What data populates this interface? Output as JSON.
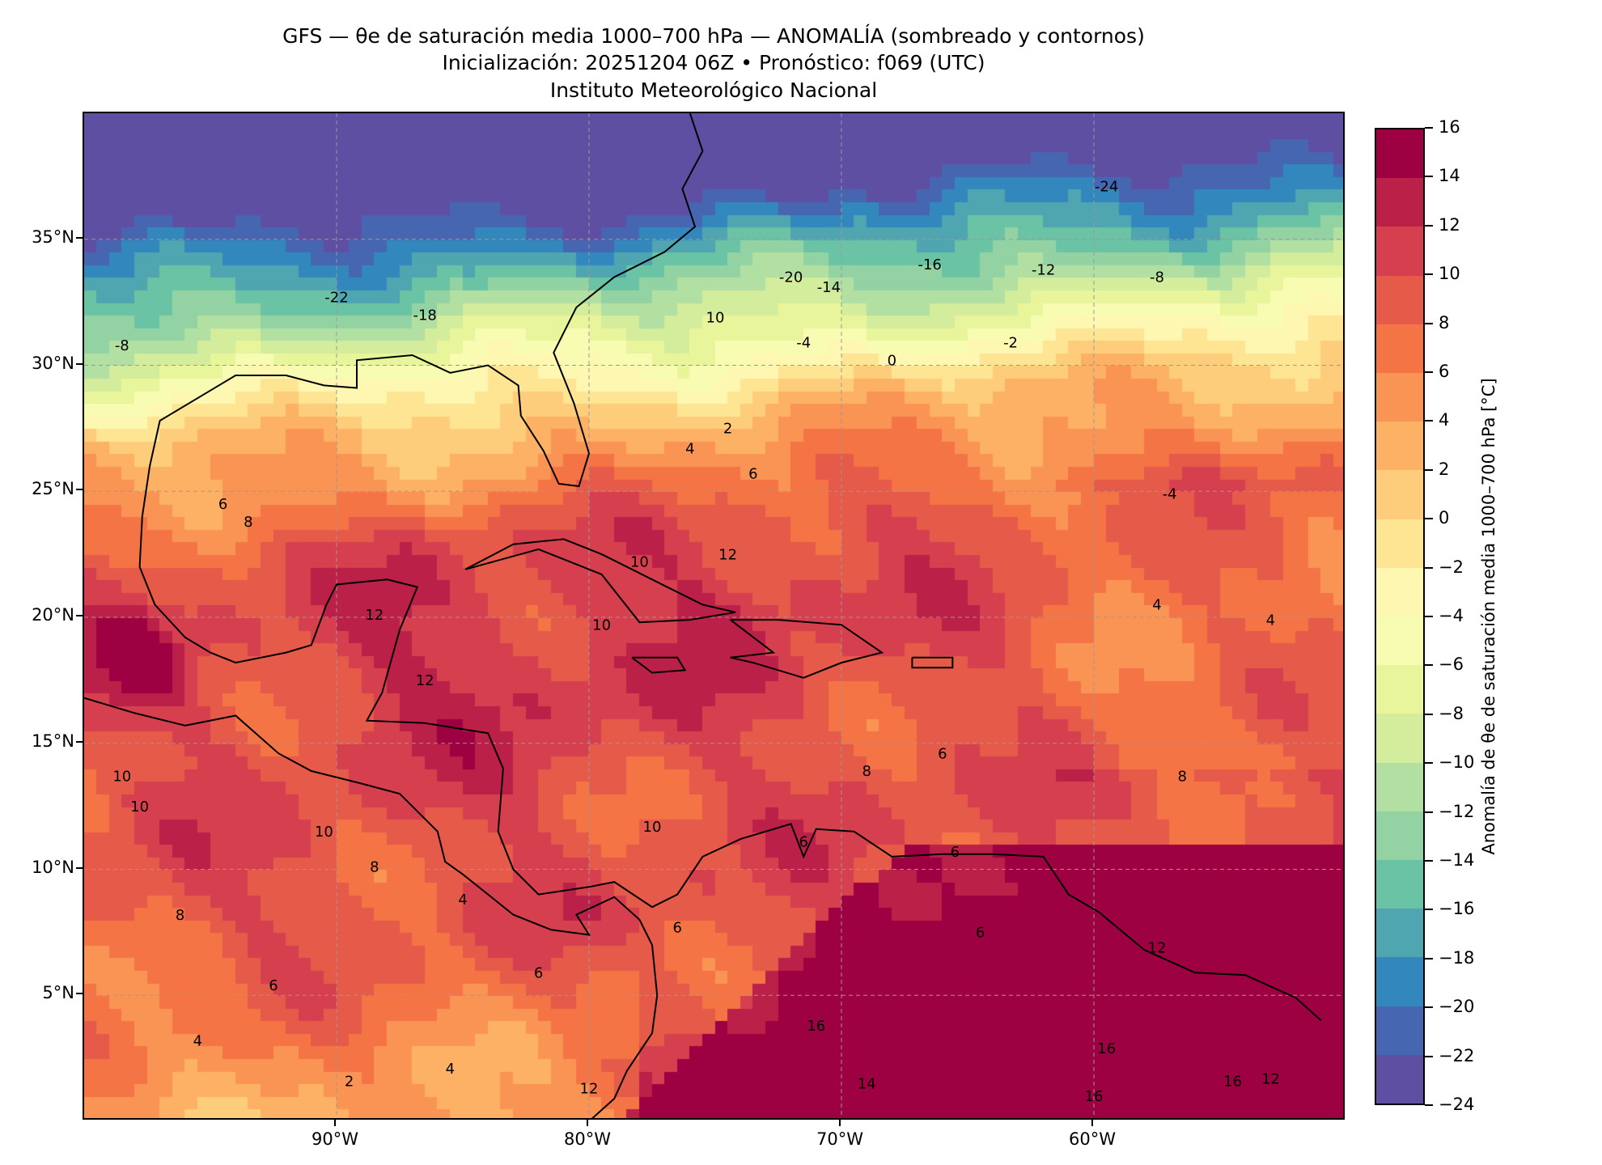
{
  "title": {
    "line1": "GFS — θe de saturación media 1000–700 hPa — ANOMALÍA (sombreado y contornos)",
    "line2": "Inicialización: 20251204 06Z   •   Pronóstico: f069 (UTC)",
    "line3": "Instituto Meteorológico Nacional"
  },
  "map": {
    "lon_range": [
      -100,
      -50
    ],
    "lat_range": [
      0,
      40
    ],
    "lat_ticks": [
      {
        "value": 35,
        "label": "35°N"
      },
      {
        "value": 30,
        "label": "30°N"
      },
      {
        "value": 25,
        "label": "25°N"
      },
      {
        "value": 20,
        "label": "20°N"
      },
      {
        "value": 15,
        "label": "15°N"
      },
      {
        "value": 10,
        "label": "10°N"
      },
      {
        "value": 5,
        "label": "5°N"
      }
    ],
    "lon_ticks": [
      {
        "value": -90,
        "label": "90°W"
      },
      {
        "value": -80,
        "label": "80°W"
      },
      {
        "value": -70,
        "label": "70°W"
      },
      {
        "value": -60,
        "label": "60°W"
      }
    ],
    "contour_labels": [
      {
        "lon": -59.5,
        "lat": 36.9,
        "text": "-24"
      },
      {
        "lon": -90,
        "lat": 32.5,
        "text": "-22"
      },
      {
        "lon": -72,
        "lat": 33.3,
        "text": "-20"
      },
      {
        "lon": -86.5,
        "lat": 31.8,
        "text": "-18"
      },
      {
        "lon": -66.5,
        "lat": 33.8,
        "text": "-16"
      },
      {
        "lon": -70.5,
        "lat": 32.9,
        "text": "-14"
      },
      {
        "lon": -62,
        "lat": 33.6,
        "text": "-12"
      },
      {
        "lon": -75,
        "lat": 31.7,
        "text": "10"
      },
      {
        "lon": -98.5,
        "lat": 30.6,
        "text": "-8"
      },
      {
        "lon": -57.5,
        "lat": 33.3,
        "text": "-8"
      },
      {
        "lon": -71.5,
        "lat": 30.7,
        "text": "-4"
      },
      {
        "lon": -63.3,
        "lat": 30.7,
        "text": "-2"
      },
      {
        "lon": -68,
        "lat": 30
      },
      {
        "lon": -68,
        "lat": 30,
        "text": "0"
      },
      {
        "lon": -74.5,
        "lat": 27.3,
        "text": "2"
      },
      {
        "lon": -76,
        "lat": 26.5,
        "text": "4"
      },
      {
        "lon": -73.5,
        "lat": 25.5,
        "text": "6"
      },
      {
        "lon": -94.5,
        "lat": 24.3,
        "text": "6"
      },
      {
        "lon": -93.5,
        "lat": 23.6,
        "text": "8"
      },
      {
        "lon": -74.5,
        "lat": 22.3,
        "text": "12"
      },
      {
        "lon": -78,
        "lat": 22,
        "text": "10"
      },
      {
        "lon": -88.5,
        "lat": 19.9,
        "text": "12"
      },
      {
        "lon": -86.5,
        "lat": 17.3,
        "text": "12"
      },
      {
        "lon": -98.5,
        "lat": 13.5,
        "text": "10"
      },
      {
        "lon": -97.8,
        "lat": 12.3,
        "text": "10"
      },
      {
        "lon": -90.5,
        "lat": 11.3,
        "text": "10"
      },
      {
        "lon": -88.5,
        "lat": 9.9,
        "text": "8"
      },
      {
        "lon": -96.2,
        "lat": 8,
        "text": "8"
      },
      {
        "lon": -92.5,
        "lat": 5.2,
        "text": "6"
      },
      {
        "lon": -95.5,
        "lat": 3,
        "text": "4"
      },
      {
        "lon": -89.5,
        "lat": 1.4,
        "text": "2"
      },
      {
        "lon": -85.5,
        "lat": 1.9,
        "text": "4"
      },
      {
        "lon": -77.5,
        "lat": 11.5,
        "text": "10"
      },
      {
        "lon": -79.5,
        "lat": 19.5,
        "text": "10"
      },
      {
        "lon": -69,
        "lat": 13.7,
        "text": "8"
      },
      {
        "lon": -66,
        "lat": 14.4,
        "text": "6"
      },
      {
        "lon": -71.5,
        "lat": 10.9,
        "text": "6"
      },
      {
        "lon": -65.5,
        "lat": 10.5,
        "text": "6"
      },
      {
        "lon": -64.5,
        "lat": 7.3,
        "text": "6"
      },
      {
        "lon": -71,
        "lat": 3.6,
        "text": "16"
      },
      {
        "lon": -69,
        "lat": 1.3,
        "text": "14"
      },
      {
        "lon": -59.5,
        "lat": 2.7,
        "text": "16"
      },
      {
        "lon": -57.5,
        "lat": 6.7,
        "text": "12"
      },
      {
        "lon": -53,
        "lat": 1.5,
        "text": "12"
      },
      {
        "lon": -54.5,
        "lat": 1.4,
        "text": "16"
      },
      {
        "lon": -60,
        "lat": 0.8,
        "text": "16"
      },
      {
        "lon": -56.5,
        "lat": 13.5,
        "text": "8"
      },
      {
        "lon": -57,
        "lat": 24.7,
        "text": "-4"
      },
      {
        "lon": -57.5,
        "lat": 20.3,
        "text": "4"
      },
      {
        "lon": -53,
        "lat": 19.7,
        "text": "4"
      },
      {
        "lon": -76.5,
        "lat": 7.5,
        "text": "6"
      },
      {
        "lon": -82,
        "lat": 5.7,
        "text": "6"
      },
      {
        "lon": -85,
        "lat": 8.6,
        "text": "4"
      },
      {
        "lon": -80,
        "lat": 1.1,
        "text": "12"
      }
    ]
  },
  "colorbar": {
    "label": "Anomalía de θe de saturación media 1000–700 hPa [°C]",
    "ticks": [
      "16",
      "14",
      "12",
      "10",
      "8",
      "6",
      "4",
      "2",
      "0",
      "−2",
      "−4",
      "−6",
      "−8",
      "−10",
      "−12",
      "−14",
      "−16",
      "−18",
      "−20",
      "−22",
      "−24"
    ],
    "levels_min": -24,
    "levels_max": 16,
    "step": 2,
    "colors": [
      "#9e0142",
      "#bb2049",
      "#d6404e",
      "#e55a49",
      "#f57446",
      "#fa9455",
      "#fdb164",
      "#fdcd7b",
      "#fee593",
      "#fef7b1",
      "#f8fbb2",
      "#e9f59b",
      "#d3ed9c",
      "#b2dfa2",
      "#93d3a3",
      "#6bc3a5",
      "#4fa5b0",
      "#3288bd",
      "#4766b1",
      "#5e4fa2"
    ]
  }
}
